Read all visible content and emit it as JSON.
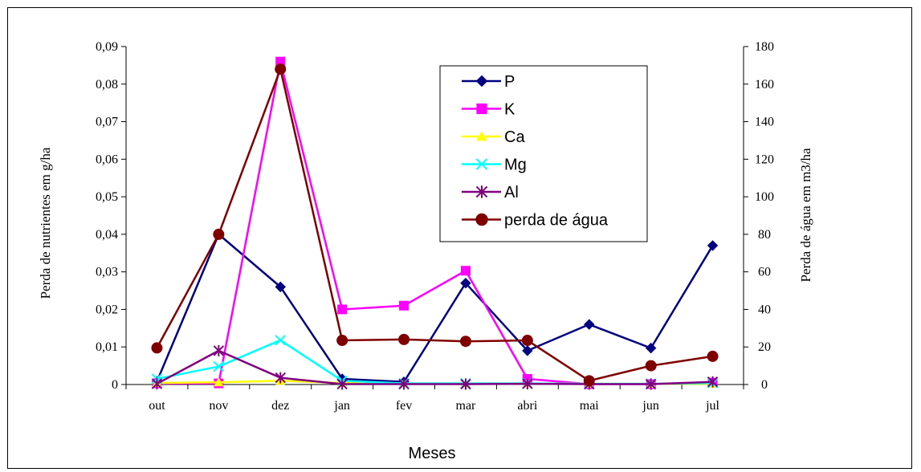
{
  "chart_data": {
    "type": "line",
    "xlabel": "Meses",
    "ylabel": "Perda de nutrientes em g/ha",
    "y2label": "Perda de água em m3/ha",
    "categories": [
      "out",
      "nov",
      "dez",
      "jan",
      "fev",
      "mar",
      "abri",
      "mai",
      "jun",
      "jul"
    ],
    "ylim": [
      0,
      0.09
    ],
    "yticks": [
      "0",
      "0,01",
      "0,02",
      "0,03",
      "0,04",
      "0,05",
      "0,06",
      "0,07",
      "0,08",
      "0,09"
    ],
    "y2lim": [
      0,
      180
    ],
    "y2ticks": [
      "0",
      "20",
      "40",
      "60",
      "80",
      "100",
      "120",
      "140",
      "160",
      "180"
    ],
    "grid": false,
    "legend_position": "top-right",
    "series": [
      {
        "name": "P",
        "axis": "left",
        "color": "#000080",
        "marker": "diamond",
        "values": [
          0.0008,
          0.04,
          0.026,
          0.0015,
          0.0007,
          0.027,
          0.009,
          0.016,
          0.0097,
          0.037
        ]
      },
      {
        "name": "K",
        "axis": "left",
        "color": "#ff00ff",
        "marker": "square",
        "values": [
          0.0003,
          0.0003,
          0.086,
          0.02,
          0.021,
          0.0303,
          0.0015,
          0.0001,
          0.0001,
          0.0005
        ]
      },
      {
        "name": "Ca",
        "axis": "left",
        "color": "#ffff00",
        "marker": "triangle",
        "values": [
          0.0004,
          0.0006,
          0.001,
          0.0004,
          0.0003,
          0.0003,
          0.0003,
          0.0002,
          0.0002,
          0.0002
        ]
      },
      {
        "name": "Mg",
        "axis": "left",
        "color": "#00ffff",
        "marker": "x",
        "values": [
          0.0015,
          0.0048,
          0.0118,
          0.001,
          0.0003,
          0.0003,
          0.0003,
          0.0002,
          0.0002,
          0.0004
        ]
      },
      {
        "name": "Al",
        "axis": "left",
        "color": "#800080",
        "marker": "star",
        "values": [
          0.0002,
          0.009,
          0.0018,
          0.0001,
          0.0001,
          0.0001,
          0.0002,
          0.0001,
          0.0001,
          0.0007
        ]
      },
      {
        "name": "perda de água",
        "axis": "right",
        "color": "#800000",
        "marker": "circle",
        "values": [
          19.5,
          80,
          168,
          23.5,
          24,
          23,
          23.5,
          2,
          10,
          15
        ]
      }
    ]
  }
}
